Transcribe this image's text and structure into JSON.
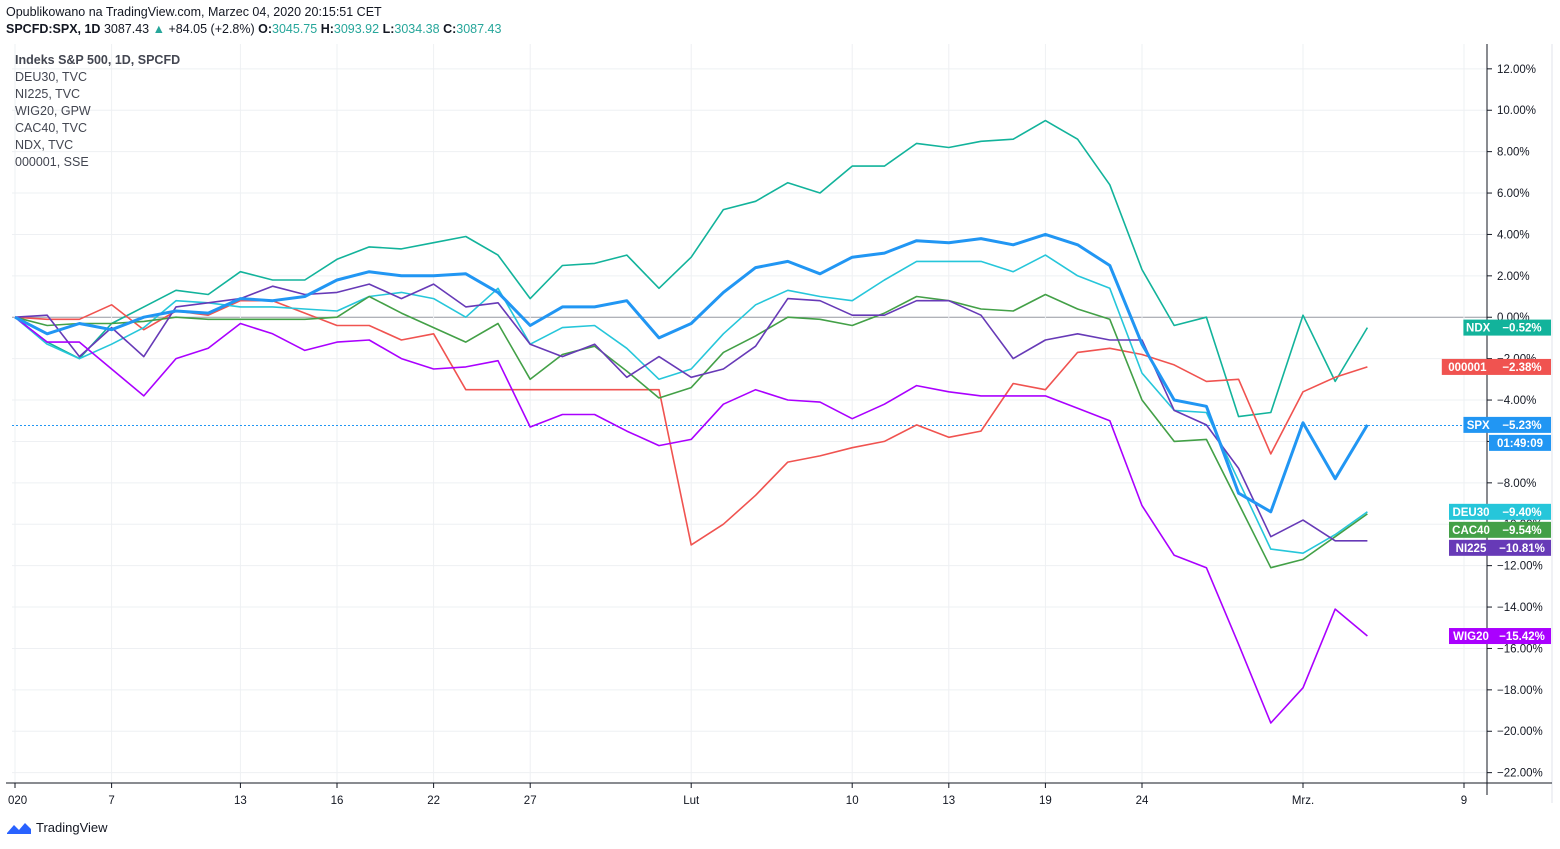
{
  "header": {
    "published": "Opublikowano na TradingView.com, Marzec 04, 2020 20:15:51 CET",
    "symbol": "SPCFD:SPX, 1D",
    "price": "3087.43",
    "change": "+84.05 (+2.8%)",
    "o_label": "O:",
    "o_value": "3045.75",
    "h_label": "H:",
    "h_value": "3093.92",
    "l_label": "L:",
    "l_value": "3034.38",
    "c_label": "C:",
    "c_value": "3087.43"
  },
  "legend": [
    "Indeks S&P 500, 1D, SPCFD",
    "DEU30, TVC",
    "NI225, TVC",
    "WIG20, GPW",
    "CAC40, TVC",
    "NDX, TVC",
    "000001, SSE"
  ],
  "footer": {
    "brand": "TradingView"
  },
  "chart_data": {
    "type": "line",
    "y_unit": "%",
    "ylim": [
      -22.5,
      13.2
    ],
    "y_ticks": [
      12,
      10,
      8,
      6,
      4,
      2,
      0,
      -2,
      -4,
      -6,
      -8,
      -10,
      -12,
      -14,
      -16,
      -18,
      -20,
      -22
    ],
    "y_tick_labels": [
      "12.00%",
      "10.00%",
      "8.00%",
      "6.00%",
      "4.00%",
      "2.00%",
      "0.00%",
      "−2.00%",
      "−4.00%",
      "−6.00%",
      "−8.00%",
      "−10.00%",
      "−12.00%",
      "−14.00%",
      "−16.00%",
      "−18.00%",
      "−20.00%",
      "−22.00%"
    ],
    "x_tick_labels": [
      {
        "label": "020",
        "i": 0
      },
      {
        "label": "7",
        "i": 3
      },
      {
        "label": "13",
        "i": 7
      },
      {
        "label": "16",
        "i": 10
      },
      {
        "label": "22",
        "i": 13
      },
      {
        "label": "27",
        "i": 16
      },
      {
        "label": "Lut",
        "i": 21
      },
      {
        "label": "10",
        "i": 26
      },
      {
        "label": "13",
        "i": 29
      },
      {
        "label": "19",
        "i": 32
      },
      {
        "label": "24",
        "i": 35
      },
      {
        "label": "Mrz.",
        "i": 40
      },
      {
        "label": "9",
        "i": 45
      }
    ],
    "grid": true,
    "zero_line": 0,
    "series": [
      {
        "name": "NDX",
        "color": "#12b39b",
        "tag": "−0.52%",
        "values": [
          0,
          -1.2,
          -2,
          -0.3,
          0.5,
          1.3,
          1.1,
          2.2,
          1.8,
          1.8,
          2.8,
          3.4,
          3.3,
          3.6,
          3.9,
          3.0,
          0.9,
          2.5,
          2.6,
          3.0,
          1.4,
          2.9,
          5.2,
          5.6,
          6.5,
          6.0,
          7.3,
          7.3,
          8.4,
          8.2,
          8.5,
          8.6,
          9.5,
          8.6,
          6.4,
          2.3,
          -0.4,
          0.0,
          -4.8,
          -4.6,
          0.1,
          -3.1,
          -0.5
        ]
      },
      {
        "name": "000001",
        "color": "#f05350",
        "tag": "−2.38%",
        "values": [
          0,
          -0.1,
          -0.1,
          0.6,
          -0.6,
          0.3,
          0.1,
          0.8,
          0.8,
          0.2,
          -0.4,
          -0.4,
          -1.1,
          -0.8,
          -3.5,
          -3.5,
          -3.5,
          -3.5,
          -3.5,
          -3.5,
          -3.5,
          -11.0,
          -10.0,
          -8.6,
          -7.0,
          -6.7,
          -6.3,
          -6.0,
          -5.2,
          -5.8,
          -5.5,
          -3.2,
          -3.5,
          -1.7,
          -1.5,
          -1.8,
          -2.3,
          -3.1,
          -3.0,
          -6.6,
          -3.6,
          -2.9,
          -2.4
        ]
      },
      {
        "name": "SPX",
        "color": "#2196f3",
        "tag": "−5.23%",
        "width": 3,
        "values": [
          0,
          -0.8,
          -0.3,
          -0.6,
          0,
          0.3,
          0.2,
          0.9,
          0.8,
          1.0,
          1.8,
          2.2,
          2.0,
          2.0,
          2.1,
          1.2,
          -0.4,
          0.5,
          0.5,
          0.8,
          -1.0,
          -0.3,
          1.2,
          2.4,
          2.7,
          2.1,
          2.9,
          3.1,
          3.7,
          3.6,
          3.8,
          3.5,
          4.0,
          3.5,
          2.5,
          -1.3,
          -4.0,
          -4.3,
          -8.5,
          -9.4,
          -5.1,
          -7.8,
          -5.2
        ]
      },
      {
        "name": "DEU30",
        "color": "#26c6da",
        "tag": "−9.40%",
        "values": [
          0,
          -1.3,
          -2.0,
          -1.3,
          -0.5,
          0.8,
          0.7,
          0.5,
          0.5,
          0.4,
          0.3,
          1.0,
          1.2,
          0.9,
          0.0,
          1.4,
          -1.3,
          -0.5,
          -0.4,
          -1.5,
          -3.0,
          -2.5,
          -0.8,
          0.6,
          1.3,
          1.0,
          0.8,
          1.8,
          2.7,
          2.7,
          2.7,
          2.2,
          3.0,
          2.0,
          1.4,
          -2.7,
          -4.5,
          -4.6,
          -7.9,
          -11.2,
          -11.4,
          -10.5,
          -9.4
        ]
      },
      {
        "name": "CAC40",
        "color": "#43a047",
        "tag": "−9.54%",
        "values": [
          0,
          -0.4,
          -0.3,
          -0.3,
          -0.2,
          0.0,
          -0.1,
          -0.1,
          -0.1,
          -0.1,
          0.0,
          1.0,
          0.2,
          -0.5,
          -1.2,
          -0.3,
          -3.0,
          -1.8,
          -1.4,
          -2.6,
          -3.9,
          -3.4,
          -1.7,
          -0.9,
          0.0,
          -0.1,
          -0.4,
          0.2,
          1.0,
          0.8,
          0.4,
          0.3,
          1.1,
          0.4,
          -0.1,
          -4.0,
          -6.0,
          -5.9,
          -9.0,
          -12.1,
          -11.7,
          -10.6,
          -9.5
        ]
      },
      {
        "name": "NI225",
        "color": "#673ab7",
        "tag": "−10.81%",
        "values": [
          0,
          0.1,
          -1.9,
          -0.5,
          -1.9,
          0.5,
          0.7,
          0.9,
          1.5,
          1.1,
          1.2,
          1.6,
          0.9,
          1.6,
          0.5,
          0.7,
          -1.3,
          -1.9,
          -1.3,
          -2.9,
          -1.9,
          -2.9,
          -2.5,
          -1.4,
          0.9,
          0.8,
          0.1,
          0.1,
          0.8,
          0.8,
          0.1,
          -2.0,
          -1.1,
          -0.8,
          -1.1,
          -1.1,
          -4.5,
          -5.2,
          -7.3,
          -10.6,
          -9.8,
          -10.8,
          -10.8
        ]
      },
      {
        "name": "WIG20",
        "color": "#aa00ff",
        "tag": "−15.42%",
        "values": [
          0,
          -1.2,
          -1.2,
          -2.5,
          -3.8,
          -2.0,
          -1.5,
          -0.3,
          -0.8,
          -1.6,
          -1.2,
          -1.1,
          -2.0,
          -2.5,
          -2.4,
          -2.1,
          -5.3,
          -4.7,
          -4.7,
          -5.5,
          -6.2,
          -5.9,
          -4.2,
          -3.5,
          -4.0,
          -4.1,
          -4.9,
          -4.2,
          -3.3,
          -3.6,
          -3.8,
          -3.8,
          -3.8,
          -4.4,
          -5.0,
          -9.1,
          -11.5,
          -12.1,
          -15.8,
          -19.6,
          -17.9,
          -14.1,
          -15.4
        ]
      }
    ],
    "crosshair": {
      "value": -5.23,
      "time_label": "01:49:09"
    }
  }
}
